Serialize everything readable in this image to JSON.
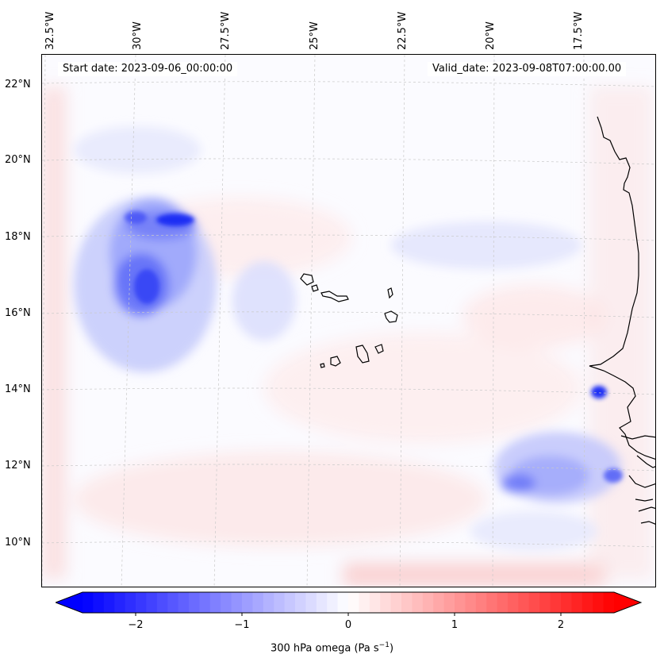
{
  "map": {
    "start_date": "Start date: 2023-09-06_00:00:00",
    "valid_date": "Valid_date: 2023-09-08T07:00:00.00",
    "lon_labels": [
      "32.5°W",
      "30°W",
      "27.5°W",
      "25°W",
      "22.5°W",
      "20°W",
      "17.5°W"
    ],
    "lat_labels": [
      "22°N",
      "20°N",
      "18°N",
      "16°N",
      "14°N",
      "12°N",
      "10°N"
    ],
    "colors": {
      "negative": "#0000ff",
      "positive": "#ff0000",
      "neutral": "#ffffff",
      "coastline": "#000000"
    }
  },
  "colorbar": {
    "label_text": "300 hPa omega (Pa s",
    "label_exp": "−1",
    "label_close": ")",
    "ticks": [
      "−2",
      "−1",
      "0",
      "1",
      "2"
    ],
    "min": -2.75,
    "max": 2.75,
    "tick_values": [
      -2,
      -1,
      0,
      1,
      2
    ]
  }
}
